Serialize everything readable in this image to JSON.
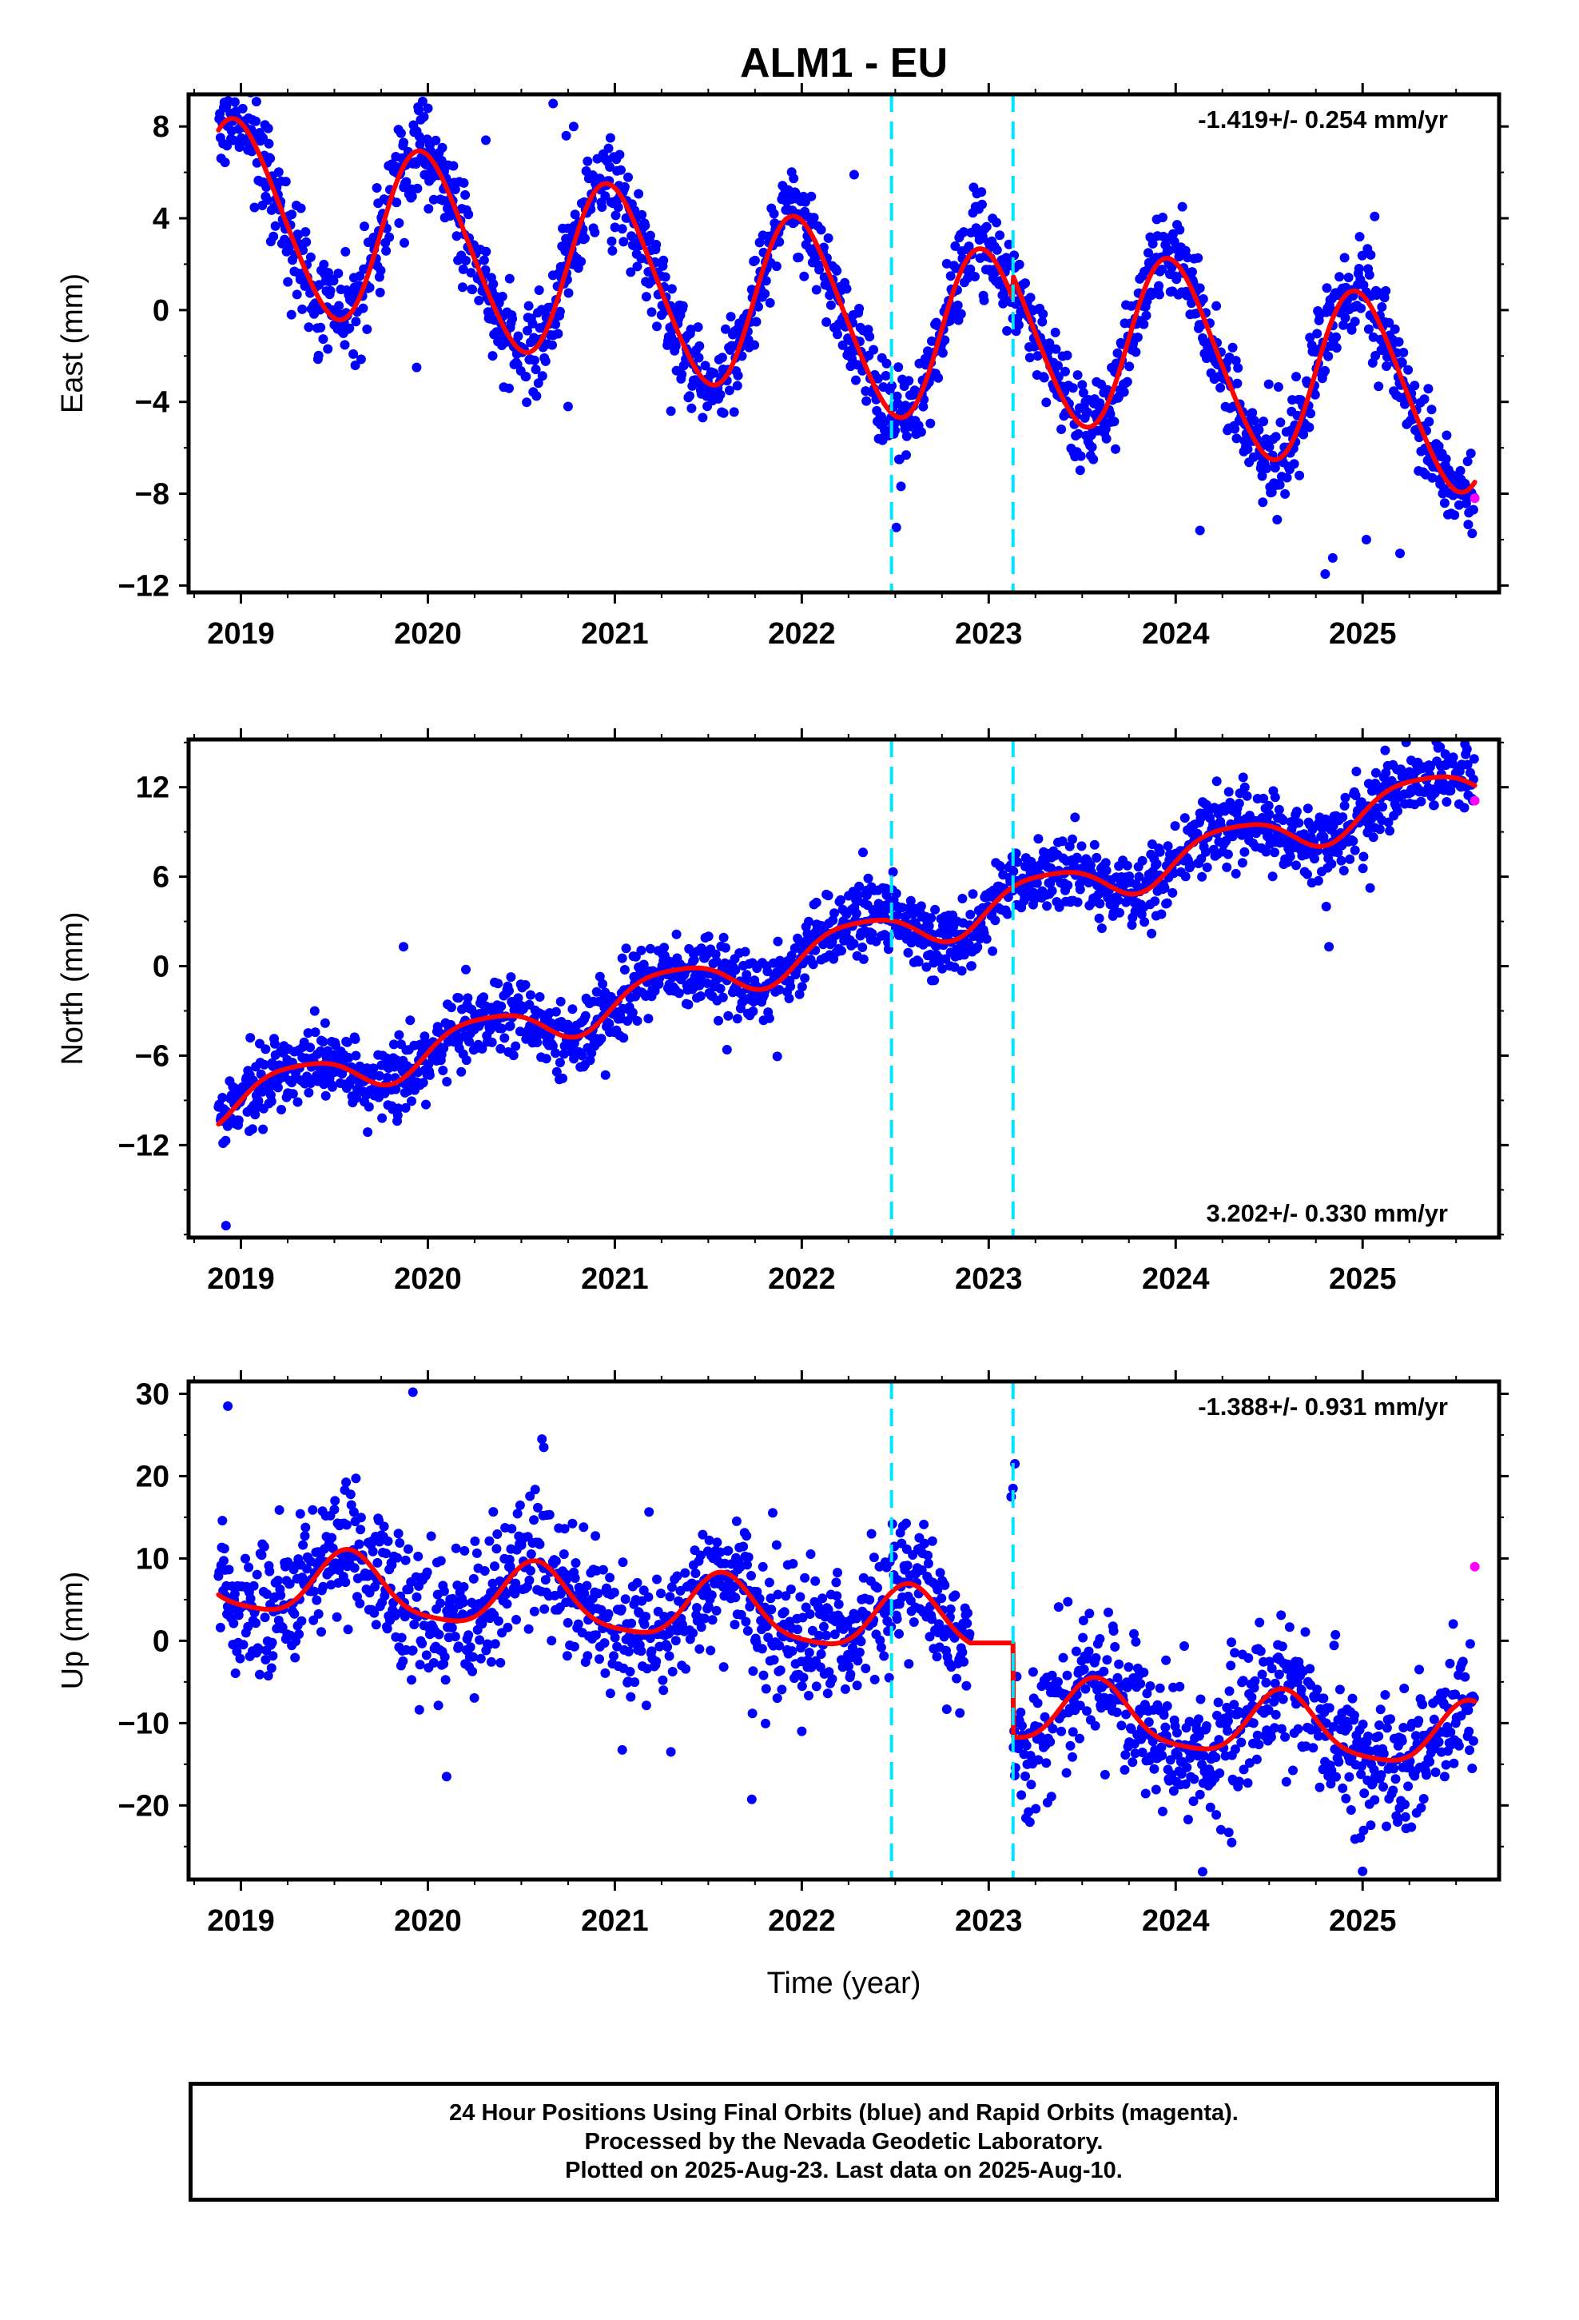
{
  "title": "ALM1 - EU",
  "xlabel": "Time (year)",
  "caption": {
    "line1": "24 Hour Positions Using Final Orbits (blue) and Rapid Orbits (magenta).",
    "line2": "Processed by the Nevada Geodetic Laboratory.",
    "line3": "Plotted on 2025-Aug-23. Last data on 2025-Aug-10."
  },
  "colors": {
    "final": "#0000ff",
    "rapid": "#ff00ff",
    "model": "#ff0000",
    "offsets": "#00e5ff",
    "frame": "#000000"
  },
  "chart_data": [
    {
      "type": "scatter",
      "component": "east",
      "ylabel": "East (mm)",
      "rate": "-1.419+/- 0.254 mm/yr",
      "xlim": [
        2018.72,
        2025.73
      ],
      "ylim": [
        -12.3,
        9.4
      ],
      "yticks": [
        -12,
        -8,
        -4,
        0,
        4,
        8
      ],
      "xticks": [
        2019,
        2020,
        2021,
        2022,
        2023,
        2024,
        2025
      ],
      "offset_lines": [
        2022.48,
        2023.13
      ],
      "grid": false,
      "model": {
        "t0": 2022.0,
        "intercept": 0.0,
        "slope": -1.419,
        "annual_sin": -0.25,
        "annual_cos": 3.9,
        "semiannual_sin": -0.4,
        "semiannual_cos": 0.0,
        "steps": [
          {
            "t": 2023.13,
            "size": 1.0
          }
        ]
      },
      "final_points": {
        "start": 2018.88,
        "end": 2025.6,
        "step": 0.0035,
        "noise_sd": 1.0,
        "outliers": [
          [
            2019.27,
            -0.2
          ],
          [
            2020.67,
            9.0
          ],
          [
            2020.78,
            8.0
          ],
          [
            2020.74,
            7.6
          ],
          [
            2020.31,
            7.4
          ],
          [
            2019.87,
            7.3
          ],
          [
            2021.3,
            -4.4
          ],
          [
            2020.75,
            -4.2
          ],
          [
            2019.94,
            -2.5
          ],
          [
            2022.28,
            5.9
          ],
          [
            2024.13,
            -9.6
          ],
          [
            2024.8,
            -11.5
          ],
          [
            2024.84,
            -10.8
          ],
          [
            2025.2,
            -10.6
          ],
          [
            2025.02,
            -10.0
          ]
        ]
      },
      "rapid_points": [
        [
          2025.6,
          -8.2
        ]
      ]
    },
    {
      "type": "scatter",
      "component": "north",
      "ylabel": "North (mm)",
      "rate": "3.202+/- 0.330 mm/yr",
      "xlim": [
        2018.72,
        2025.73
      ],
      "ylim": [
        -18.2,
        15.2
      ],
      "yticks": [
        -12,
        -6,
        0,
        6,
        12
      ],
      "xticks": [
        2019,
        2020,
        2021,
        2022,
        2023,
        2024,
        2025
      ],
      "offset_lines": [
        2022.48,
        2023.13
      ],
      "grid": false,
      "model": {
        "t0": 2022.0,
        "intercept": 0.8,
        "slope": 3.202,
        "annual_sin": 1.35,
        "annual_cos": -0.4,
        "semiannual_sin": 0.2,
        "semiannual_cos": 0.2,
        "steps": [
          {
            "t": 2022.48,
            "size": 0.0
          }
        ]
      },
      "final_points": {
        "start": 2018.88,
        "end": 2025.6,
        "step": 0.0035,
        "noise_sd": 1.15,
        "outliers": [
          [
            2018.92,
            -17.4
          ],
          [
            2019.05,
            -4.8
          ],
          [
            2019.87,
            1.3
          ],
          [
            2020.95,
            -7.3
          ],
          [
            2021.6,
            -5.6
          ],
          [
            2022.08,
            2.8
          ],
          [
            2024.82,
            1.3
          ],
          [
            2025.26,
            13.8
          ],
          [
            2024.22,
            12.4
          ],
          [
            2024.37,
            12.0
          ]
        ]
      },
      "rapid_points": [
        [
          2025.6,
          11.1
        ]
      ]
    },
    {
      "type": "scatter",
      "component": "up",
      "ylabel": "Up (mm)",
      "rate": "-1.388+/- 0.931 mm/yr",
      "xlim": [
        2018.72,
        2025.73
      ],
      "ylim": [
        -29,
        31.5
      ],
      "yticks": [
        -20,
        -10,
        0,
        10,
        20,
        30
      ],
      "xticks": [
        2019,
        2020,
        2021,
        2022,
        2023,
        2024,
        2025
      ],
      "offset_lines": [
        2022.48,
        2023.13
      ],
      "grid": false,
      "model": {
        "t0": 2022.0,
        "intercept": 3.0,
        "slope": -1.388,
        "annual_sin": -1.9,
        "annual_cos": -3.4,
        "semiannual_sin": 0.6,
        "semiannual_cos": 0.6,
        "steps": [
          {
            "t": 2023.13,
            "size": -10.0
          }
        ],
        "gap": [
          2022.9,
          2023.13
        ]
      },
      "final_points": {
        "start": 2018.88,
        "end": 2025.6,
        "step": 0.0035,
        "noise_sd": 4.0,
        "gap": [
          2022.9,
          2023.13
        ],
        "outliers": [
          [
            2018.93,
            28.5
          ],
          [
            2019.92,
            30.2
          ],
          [
            2020.61,
            24.5
          ],
          [
            2020.62,
            23.5
          ],
          [
            2023.14,
            21.5
          ],
          [
            2023.13,
            18.5
          ],
          [
            2023.12,
            17.5
          ],
          [
            2020.1,
            -16.5
          ],
          [
            2025.0,
            -28.0
          ],
          [
            2024.3,
            -24.5
          ],
          [
            2021.3,
            -13.5
          ],
          [
            2022.0,
            -11.0
          ]
        ]
      },
      "rapid_points": [
        [
          2025.6,
          9.0
        ]
      ]
    }
  ]
}
